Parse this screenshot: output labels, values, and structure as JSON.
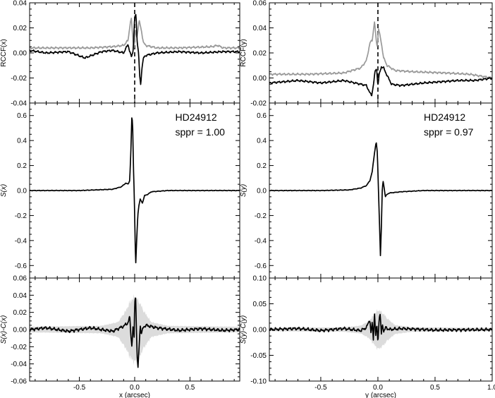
{
  "chart_data": [
    {
      "id": "rccf-x",
      "type": "line",
      "title": "",
      "xlabel": "",
      "ylabel": "RCCF(x)",
      "xlim": [
        -0.95,
        0.95
      ],
      "ylim": [
        -0.04,
        0.04
      ],
      "x_ticks": [
        -0.5,
        0.0,
        0.5
      ],
      "y_ticks": [
        -0.04,
        -0.02,
        0.0,
        0.02,
        0.04
      ],
      "y_tick_labels": [
        "-0.04",
        "-0.02",
        "0.00",
        "0.02",
        "0.04"
      ],
      "vline": 0.0,
      "series": [
        {
          "style": "gray",
          "points": [
            [
              -0.95,
              0.004
            ],
            [
              -0.6,
              0.004
            ],
            [
              -0.4,
              0.004
            ],
            [
              -0.2,
              0.005
            ],
            [
              -0.1,
              0.006
            ],
            [
              -0.06,
              0.01
            ],
            [
              -0.04,
              0.024
            ],
            [
              -0.03,
              0.027
            ],
            [
              -0.015,
              0.01
            ],
            [
              -0.005,
              0.004
            ],
            [
              0.005,
              0.018
            ],
            [
              0.02,
              0.012
            ],
            [
              0.04,
              0.026
            ],
            [
              0.06,
              0.018
            ],
            [
              0.08,
              0.008
            ],
            [
              0.1,
              0.006
            ],
            [
              0.2,
              0.004
            ],
            [
              0.4,
              0.004
            ],
            [
              0.7,
              0.005
            ],
            [
              0.75,
              0.006
            ],
            [
              0.8,
              0.004
            ],
            [
              0.95,
              0.004
            ]
          ]
        },
        {
          "style": "black",
          "points": [
            [
              -0.95,
              0.002
            ],
            [
              -0.8,
              0.0
            ],
            [
              -0.6,
              0.001
            ],
            [
              -0.45,
              -0.004
            ],
            [
              -0.3,
              0.001
            ],
            [
              -0.2,
              0.002
            ],
            [
              -0.1,
              0.0
            ],
            [
              -0.06,
              0.007
            ],
            [
              -0.045,
              0.001
            ],
            [
              -0.03,
              -0.003
            ],
            [
              -0.015,
              0.001
            ],
            [
              0.0,
              0.028
            ],
            [
              0.012,
              0.031
            ],
            [
              0.022,
              0.01
            ],
            [
              0.035,
              0.0
            ],
            [
              0.045,
              -0.018
            ],
            [
              0.055,
              -0.026
            ],
            [
              0.065,
              -0.012
            ],
            [
              0.08,
              -0.004
            ],
            [
              0.1,
              -0.002
            ],
            [
              0.2,
              0.0
            ],
            [
              0.4,
              0.001
            ],
            [
              0.6,
              0.0
            ],
            [
              0.8,
              0.001
            ],
            [
              0.95,
              0.001
            ]
          ]
        }
      ]
    },
    {
      "id": "rccf-y",
      "type": "line",
      "title": "",
      "xlabel": "",
      "ylabel": "RCCF(y)",
      "xlim": [
        -0.95,
        1.0
      ],
      "ylim": [
        -0.02,
        0.06
      ],
      "x_ticks": [
        -0.5,
        0.0,
        0.5,
        1.0
      ],
      "y_ticks": [
        -0.02,
        0.0,
        0.02,
        0.04,
        0.06
      ],
      "y_tick_labels": [
        "-0.02",
        "0.00",
        "0.02",
        "0.04",
        "0.06"
      ],
      "vline": 0.0,
      "series": [
        {
          "style": "gray",
          "points": [
            [
              -0.95,
              0.003
            ],
            [
              -0.6,
              0.003
            ],
            [
              -0.3,
              0.004
            ],
            [
              -0.15,
              0.008
            ],
            [
              -0.1,
              0.014
            ],
            [
              -0.07,
              0.028
            ],
            [
              -0.05,
              0.03
            ],
            [
              -0.03,
              0.045
            ],
            [
              -0.015,
              0.03
            ],
            [
              -0.005,
              0.025
            ],
            [
              0.005,
              0.04
            ],
            [
              0.015,
              0.035
            ],
            [
              0.03,
              0.028
            ],
            [
              0.05,
              0.016
            ],
            [
              0.08,
              0.01
            ],
            [
              0.15,
              0.006
            ],
            [
              0.3,
              0.005
            ],
            [
              0.6,
              0.004
            ],
            [
              0.8,
              0.003
            ],
            [
              1.0,
              0.0
            ]
          ]
        },
        {
          "style": "black",
          "points": [
            [
              -0.95,
              -0.004
            ],
            [
              -0.7,
              -0.002
            ],
            [
              -0.5,
              -0.004
            ],
            [
              -0.3,
              -0.002
            ],
            [
              -0.15,
              -0.005
            ],
            [
              -0.1,
              -0.006
            ],
            [
              -0.07,
              -0.012
            ],
            [
              -0.055,
              -0.014
            ],
            [
              -0.04,
              -0.006
            ],
            [
              -0.025,
              0.005
            ],
            [
              -0.012,
              0.008
            ],
            [
              0.0,
              -0.006
            ],
            [
              0.012,
              0.003
            ],
            [
              0.03,
              0.009
            ],
            [
              0.05,
              0.008
            ],
            [
              0.08,
              0.002
            ],
            [
              0.12,
              -0.005
            ],
            [
              0.2,
              -0.006
            ],
            [
              0.4,
              -0.004
            ],
            [
              0.7,
              -0.002
            ],
            [
              0.85,
              -0.002
            ],
            [
              1.0,
              0.0
            ]
          ]
        }
      ]
    },
    {
      "id": "s-x",
      "type": "line",
      "title": "",
      "xlabel": "",
      "ylabel": "S(x)",
      "xlim": [
        -0.95,
        0.95
      ],
      "ylim": [
        -0.7,
        0.7
      ],
      "x_ticks": [
        -0.5,
        0.0,
        0.5
      ],
      "y_ticks": [
        -0.6,
        -0.4,
        -0.2,
        0.0,
        0.2,
        0.4,
        0.6
      ],
      "y_tick_labels": [
        "-0.6",
        "-0.4",
        "-0.2",
        "0.0",
        "0.2",
        "0.4",
        "0.6"
      ],
      "annotations": [
        "HD24912",
        "sppr = 1.00"
      ],
      "series": [
        {
          "style": "black",
          "points": [
            [
              -0.95,
              0.0
            ],
            [
              -0.5,
              0.0
            ],
            [
              -0.2,
              0.01
            ],
            [
              -0.12,
              0.03
            ],
            [
              -0.08,
              0.06
            ],
            [
              -0.06,
              0.05
            ],
            [
              -0.045,
              0.08
            ],
            [
              -0.035,
              0.3
            ],
            [
              -0.025,
              0.61
            ],
            [
              -0.018,
              0.5
            ],
            [
              -0.01,
              0.15
            ],
            [
              -0.005,
              0.0
            ],
            [
              0.0,
              -0.2
            ],
            [
              0.005,
              -0.45
            ],
            [
              0.01,
              -0.58
            ],
            [
              0.018,
              -0.4
            ],
            [
              0.028,
              -0.2
            ],
            [
              0.038,
              -0.12
            ],
            [
              0.05,
              -0.07
            ],
            [
              0.07,
              -0.1
            ],
            [
              0.09,
              -0.04
            ],
            [
              0.12,
              -0.03
            ],
            [
              0.15,
              -0.01
            ],
            [
              0.3,
              0.0
            ],
            [
              0.6,
              0.0
            ],
            [
              0.95,
              0.0
            ]
          ]
        }
      ]
    },
    {
      "id": "s-y",
      "type": "line",
      "title": "",
      "xlabel": "",
      "ylabel": "S(y)",
      "xlim": [
        -0.95,
        1.0
      ],
      "ylim": [
        -0.7,
        0.7
      ],
      "x_ticks": [
        -0.5,
        0.0,
        0.5,
        1.0
      ],
      "y_ticks": [
        -0.6,
        -0.4,
        -0.2,
        0.0,
        0.2,
        0.4,
        0.6
      ],
      "y_tick_labels": [
        "-0.6",
        "-0.4",
        "-0.2",
        "0.0",
        "0.2",
        "0.4",
        "0.6"
      ],
      "annotations": [
        "HD24912",
        "sppr = 0.97"
      ],
      "series": [
        {
          "style": "black",
          "points": [
            [
              -0.95,
              0.0
            ],
            [
              -0.5,
              0.0
            ],
            [
              -0.25,
              0.005
            ],
            [
              -0.15,
              0.02
            ],
            [
              -0.1,
              0.04
            ],
            [
              -0.07,
              0.08
            ],
            [
              -0.05,
              0.15
            ],
            [
              -0.03,
              0.3
            ],
            [
              -0.015,
              0.39
            ],
            [
              -0.005,
              0.3
            ],
            [
              0.005,
              0.0
            ],
            [
              0.015,
              -0.3
            ],
            [
              0.022,
              -0.52
            ],
            [
              0.03,
              -0.3
            ],
            [
              0.038,
              0.0
            ],
            [
              0.045,
              0.08
            ],
            [
              0.055,
              0.02
            ],
            [
              0.065,
              -0.05
            ],
            [
              0.08,
              -0.03
            ],
            [
              0.1,
              -0.02
            ],
            [
              0.2,
              -0.01
            ],
            [
              0.4,
              0.0
            ],
            [
              1.0,
              0.0
            ]
          ]
        }
      ]
    },
    {
      "id": "resid-x",
      "type": "line",
      "title": "",
      "xlabel": "x (arcsec)",
      "ylabel": "S(x)-C(x)",
      "xlim": [
        -0.95,
        0.95
      ],
      "ylim": [
        -0.06,
        0.06
      ],
      "x_ticks": [
        -0.5,
        0.0,
        0.5
      ],
      "x_tick_labels": [
        "-0.5",
        "0.0",
        "0.5"
      ],
      "y_ticks": [
        -0.06,
        -0.04,
        -0.02,
        0.0,
        0.02,
        0.04,
        0.06
      ],
      "y_tick_labels": [
        "-0.06",
        "-0.04",
        "-0.02",
        "0.00",
        "0.02",
        "0.04",
        "0.06"
      ],
      "band_halfwidth": [
        [
          -0.95,
          0.003
        ],
        [
          -0.3,
          0.004
        ],
        [
          -0.15,
          0.008
        ],
        [
          -0.08,
          0.02
        ],
        [
          -0.04,
          0.03
        ],
        [
          0.0,
          0.035
        ],
        [
          0.04,
          0.03
        ],
        [
          0.08,
          0.02
        ],
        [
          0.15,
          0.008
        ],
        [
          0.3,
          0.004
        ],
        [
          0.95,
          0.003
        ]
      ],
      "series": [
        {
          "style": "black",
          "points": [
            [
              -0.95,
              0.0
            ],
            [
              -0.8,
              0.002
            ],
            [
              -0.6,
              -0.002
            ],
            [
              -0.4,
              0.002
            ],
            [
              -0.2,
              -0.002
            ],
            [
              -0.1,
              0.004
            ],
            [
              -0.06,
              0.008
            ],
            [
              -0.045,
              0.015
            ],
            [
              -0.035,
              -0.005
            ],
            [
              -0.025,
              -0.02
            ],
            [
              -0.015,
              0.005
            ],
            [
              -0.005,
              -0.01
            ],
            [
              0.0,
              0.03
            ],
            [
              0.008,
              0.042
            ],
            [
              0.015,
              0.005
            ],
            [
              0.022,
              -0.03
            ],
            [
              0.03,
              -0.046
            ],
            [
              0.04,
              -0.02
            ],
            [
              0.05,
              0.005
            ],
            [
              0.06,
              -0.005
            ],
            [
              0.08,
              0.003
            ],
            [
              0.1,
              0.005
            ],
            [
              0.2,
              0.002
            ],
            [
              0.4,
              -0.001
            ],
            [
              0.6,
              0.001
            ],
            [
              0.8,
              -0.001
            ],
            [
              0.95,
              0.0
            ]
          ]
        }
      ]
    },
    {
      "id": "resid-y",
      "type": "line",
      "title": "",
      "xlabel": "y (arcsec)",
      "ylabel": "S(y)-C(y)",
      "xlim": [
        -0.95,
        1.0
      ],
      "ylim": [
        -0.1,
        0.1
      ],
      "x_ticks": [
        -0.5,
        0.0,
        0.5,
        1.0
      ],
      "x_tick_labels": [
        "-0.5",
        "0.0",
        "0.5",
        "1.0"
      ],
      "y_ticks": [
        -0.1,
        -0.05,
        0.0,
        0.05,
        0.1
      ],
      "y_tick_labels": [
        "-0.10",
        "-0.05",
        "0.00",
        "0.05",
        "0.10"
      ],
      "band_halfwidth": [
        [
          -0.95,
          0.003
        ],
        [
          -0.3,
          0.004
        ],
        [
          -0.15,
          0.007
        ],
        [
          -0.08,
          0.015
        ],
        [
          -0.04,
          0.025
        ],
        [
          0.0,
          0.035
        ],
        [
          0.04,
          0.03
        ],
        [
          0.08,
          0.02
        ],
        [
          0.15,
          0.008
        ],
        [
          0.3,
          0.004
        ],
        [
          1.0,
          0.003
        ]
      ],
      "series": [
        {
          "style": "black",
          "points": [
            [
              -0.95,
              0.0
            ],
            [
              -0.7,
              0.002
            ],
            [
              -0.5,
              -0.002
            ],
            [
              -0.3,
              0.002
            ],
            [
              -0.15,
              -0.002
            ],
            [
              -0.1,
              0.004
            ],
            [
              -0.07,
              0.02
            ],
            [
              -0.06,
              -0.01
            ],
            [
              -0.05,
              0.015
            ],
            [
              -0.04,
              -0.02
            ],
            [
              -0.03,
              0.035
            ],
            [
              -0.02,
              -0.015
            ],
            [
              -0.01,
              0.01
            ],
            [
              0.0,
              -0.025
            ],
            [
              0.01,
              0.02
            ],
            [
              0.02,
              0.03
            ],
            [
              0.03,
              -0.01
            ],
            [
              0.04,
              0.012
            ],
            [
              0.05,
              -0.004
            ],
            [
              0.07,
              0.004
            ],
            [
              0.1,
              0.0
            ],
            [
              0.2,
              0.002
            ],
            [
              0.5,
              -0.001
            ],
            [
              1.0,
              0.0
            ]
          ]
        }
      ]
    }
  ]
}
